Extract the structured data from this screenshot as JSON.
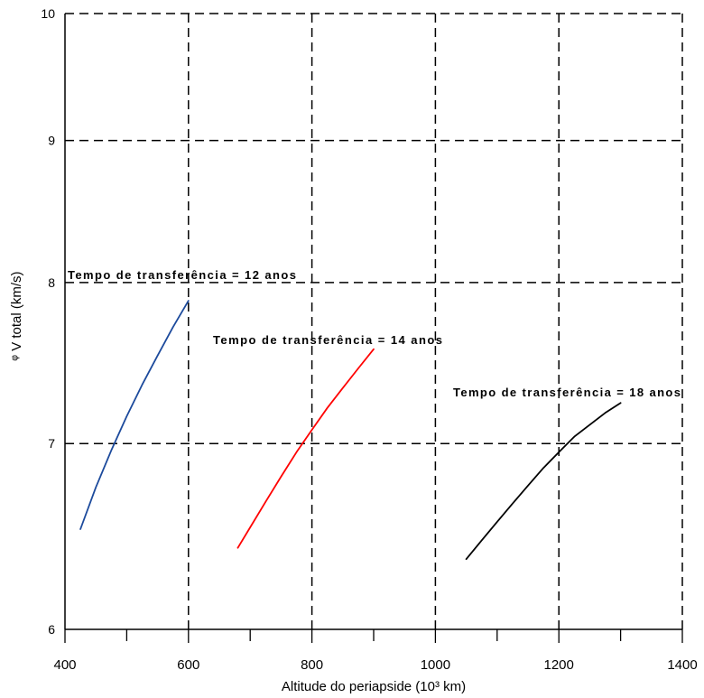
{
  "chart_data": {
    "type": "line",
    "xlabel": "Altitude do periapside (10³ km)",
    "ylabel": "ᵠ V total (km/s)",
    "xlim": [
      400,
      1400
    ],
    "ylim": [
      6,
      10
    ],
    "yscale": "log",
    "xticks": [
      400,
      600,
      800,
      1000,
      1200,
      1400
    ],
    "xminor_ticks": [
      500,
      700,
      900,
      1100,
      1300
    ],
    "yticks": [
      6,
      7,
      8,
      9,
      10
    ],
    "grid": true,
    "series": [
      {
        "name": "Tempo de transferência = 12 anos",
        "color": "#1c4a9c",
        "x": [
          425,
          450,
          475,
          500,
          525,
          550,
          575,
          600
        ],
        "y": [
          6.52,
          6.75,
          6.96,
          7.16,
          7.35,
          7.53,
          7.71,
          7.88
        ]
      },
      {
        "name": "Tempo de transferência = 14 anos",
        "color": "#ff0000",
        "x": [
          680,
          700,
          725,
          750,
          775,
          800,
          825,
          850,
          875,
          900
        ],
        "y": [
          6.42,
          6.53,
          6.67,
          6.81,
          6.95,
          7.08,
          7.21,
          7.33,
          7.45,
          7.57
        ]
      },
      {
        "name": "Tempo de transferência = 18 anos",
        "color": "#000000",
        "x": [
          1050,
          1075,
          1100,
          1125,
          1150,
          1175,
          1200,
          1225,
          1250,
          1275,
          1300
        ],
        "y": [
          6.36,
          6.46,
          6.56,
          6.66,
          6.76,
          6.86,
          6.95,
          7.04,
          7.11,
          7.18,
          7.24
        ]
      }
    ]
  }
}
